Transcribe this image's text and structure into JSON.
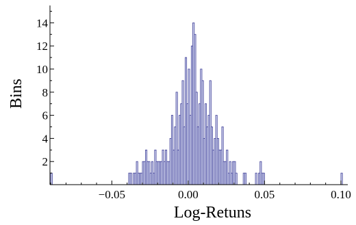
{
  "chart_data": {
    "type": "bar",
    "xlabel": "Log-Retuns",
    "ylabel": "Bins",
    "xlim": [
      -0.0905,
      0.1045
    ],
    "ylim": [
      0,
      15.5
    ],
    "x_ticks": [
      -0.05,
      0.0,
      0.05,
      0.1
    ],
    "x_tick_labels": [
      "−0.05",
      "0.00",
      "0.05",
      "0.10"
    ],
    "y_ticks": [
      2,
      4,
      6,
      8,
      10,
      12,
      14
    ],
    "y_tick_labels": [
      "2",
      "4",
      "6",
      "8",
      "10",
      "12",
      "14"
    ],
    "bin_width": 0.001,
    "bar_fill": "#d6daf1",
    "bar_stroke": "#3c3c96",
    "bins": [
      {
        "x": -0.09,
        "count": 1
      },
      {
        "x": -0.039,
        "count": 1
      },
      {
        "x": -0.038,
        "count": 1
      },
      {
        "x": -0.036,
        "count": 1
      },
      {
        "x": -0.035,
        "count": 1
      },
      {
        "x": -0.034,
        "count": 2
      },
      {
        "x": -0.033,
        "count": 1
      },
      {
        "x": -0.032,
        "count": 1
      },
      {
        "x": -0.031,
        "count": 1
      },
      {
        "x": -0.03,
        "count": 2
      },
      {
        "x": -0.029,
        "count": 2
      },
      {
        "x": -0.028,
        "count": 3
      },
      {
        "x": -0.027,
        "count": 2
      },
      {
        "x": -0.026,
        "count": 2
      },
      {
        "x": -0.025,
        "count": 1
      },
      {
        "x": -0.024,
        "count": 2
      },
      {
        "x": -0.023,
        "count": 1
      },
      {
        "x": -0.022,
        "count": 3
      },
      {
        "x": -0.021,
        "count": 2
      },
      {
        "x": -0.02,
        "count": 2
      },
      {
        "x": -0.019,
        "count": 2
      },
      {
        "x": -0.018,
        "count": 2
      },
      {
        "x": -0.017,
        "count": 3
      },
      {
        "x": -0.016,
        "count": 2
      },
      {
        "x": -0.015,
        "count": 3
      },
      {
        "x": -0.014,
        "count": 2
      },
      {
        "x": -0.013,
        "count": 2
      },
      {
        "x": -0.012,
        "count": 4
      },
      {
        "x": -0.011,
        "count": 6
      },
      {
        "x": -0.01,
        "count": 3
      },
      {
        "x": -0.009,
        "count": 5
      },
      {
        "x": -0.008,
        "count": 8
      },
      {
        "x": -0.007,
        "count": 3
      },
      {
        "x": -0.006,
        "count": 6
      },
      {
        "x": -0.005,
        "count": 7
      },
      {
        "x": -0.004,
        "count": 9
      },
      {
        "x": -0.003,
        "count": 5
      },
      {
        "x": -0.002,
        "count": 11
      },
      {
        "x": -0.001,
        "count": 7
      },
      {
        "x": 0.0,
        "count": 10
      },
      {
        "x": 0.001,
        "count": 6
      },
      {
        "x": 0.002,
        "count": 12
      },
      {
        "x": 0.003,
        "count": 14
      },
      {
        "x": 0.004,
        "count": 13
      },
      {
        "x": 0.005,
        "count": 8
      },
      {
        "x": 0.006,
        "count": 5
      },
      {
        "x": 0.007,
        "count": 7
      },
      {
        "x": 0.008,
        "count": 10
      },
      {
        "x": 0.009,
        "count": 9
      },
      {
        "x": 0.01,
        "count": 4
      },
      {
        "x": 0.011,
        "count": 7
      },
      {
        "x": 0.012,
        "count": 5
      },
      {
        "x": 0.013,
        "count": 6
      },
      {
        "x": 0.014,
        "count": 9
      },
      {
        "x": 0.015,
        "count": 5
      },
      {
        "x": 0.016,
        "count": 3
      },
      {
        "x": 0.017,
        "count": 4
      },
      {
        "x": 0.018,
        "count": 6
      },
      {
        "x": 0.019,
        "count": 4
      },
      {
        "x": 0.02,
        "count": 3
      },
      {
        "x": 0.021,
        "count": 3
      },
      {
        "x": 0.022,
        "count": 5
      },
      {
        "x": 0.023,
        "count": 2
      },
      {
        "x": 0.024,
        "count": 2
      },
      {
        "x": 0.025,
        "count": 3
      },
      {
        "x": 0.026,
        "count": 1
      },
      {
        "x": 0.027,
        "count": 2
      },
      {
        "x": 0.028,
        "count": 1
      },
      {
        "x": 0.029,
        "count": 2
      },
      {
        "x": 0.03,
        "count": 2
      },
      {
        "x": 0.031,
        "count": 1
      },
      {
        "x": 0.036,
        "count": 1
      },
      {
        "x": 0.037,
        "count": 1
      },
      {
        "x": 0.044,
        "count": 1
      },
      {
        "x": 0.046,
        "count": 1
      },
      {
        "x": 0.047,
        "count": 2
      },
      {
        "x": 0.048,
        "count": 1
      },
      {
        "x": 0.049,
        "count": 1
      },
      {
        "x": 0.1,
        "count": 1
      }
    ]
  }
}
